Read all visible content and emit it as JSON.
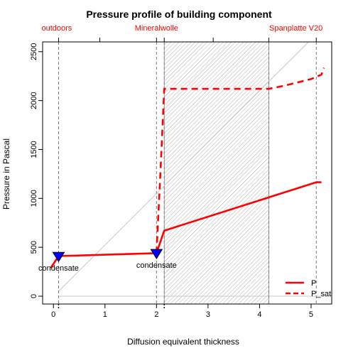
{
  "chart_data": {
    "type": "line",
    "title": "Pressure profile of building component",
    "xlabel": "Diffusion equivalent thickness",
    "ylabel": "Pressure in Pascal",
    "xlim": [
      -0.21,
      5.4
    ],
    "ylim": [
      -80,
      2600
    ],
    "xticks": [
      0,
      1,
      2,
      3,
      4,
      5
    ],
    "yticks": [
      0,
      500,
      1000,
      1500,
      2000,
      2500
    ],
    "grid": false,
    "legend_position": "bottom-right",
    "layers": [
      {
        "name": "outdoors",
        "x": 0.1
      },
      {
        "name": "Mineralwolle",
        "x": 2.0
      },
      {
        "name": "Spanplatte V20",
        "x": 5.1
      }
    ],
    "layer_boundaries": [
      0.1,
      2.0,
      2.15,
      4.18,
      5.1
    ],
    "hatched_region": [
      2.15,
      4.18
    ],
    "diagonal_line": {
      "x": [
        0.1,
        4.95
      ],
      "y": [
        50,
        2600
      ]
    },
    "series": [
      {
        "name": "P",
        "style": "solid",
        "color": "#ff0000",
        "x": [
          -0.05,
          0.1,
          2.0,
          2.15,
          5.1,
          5.2
        ],
        "y": [
          290,
          410,
          440,
          670,
          1165,
          1165
        ]
      },
      {
        "name": "P_sat",
        "style": "dashed",
        "color": "#ff0000",
        "x": [
          2.0,
          2.08,
          2.15,
          4.18,
          4.5,
          5.0,
          5.2,
          5.25
        ],
        "y": [
          440,
          1300,
          2120,
          2120,
          2155,
          2220,
          2265,
          2335
        ]
      }
    ],
    "condensate_markers": [
      {
        "x": 0.1,
        "y": 405,
        "label": "condensate"
      },
      {
        "x": 2.0,
        "y": 435,
        "label": "condensate"
      }
    ],
    "colors": {
      "marker": "#0000ff",
      "line": "#ff0000",
      "layer_label": "#ff0000"
    }
  }
}
